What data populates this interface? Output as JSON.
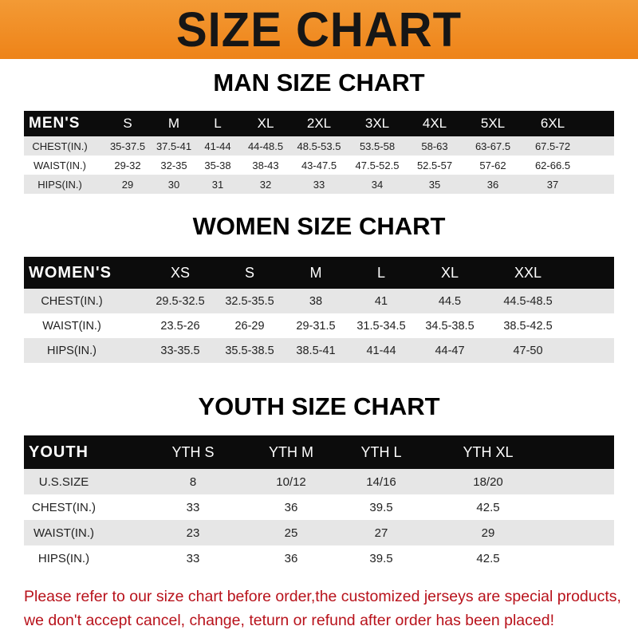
{
  "banner": "SIZE CHART",
  "tables": [
    {
      "title": "MAN SIZE CHART",
      "header": [
        "MEN'S",
        "S",
        "M",
        "L",
        "XL",
        "2XL",
        "3XL",
        "4XL",
        "5XL",
        "6XL"
      ],
      "rows": [
        [
          "CHEST(IN.)",
          "35-37.5",
          "37.5-41",
          "41-44",
          "44-48.5",
          "48.5-53.5",
          "53.5-58",
          "58-63",
          "63-67.5",
          "67.5-72"
        ],
        [
          "WAIST(IN.)",
          "29-32",
          "32-35",
          "35-38",
          "38-43",
          "43-47.5",
          "47.5-52.5",
          "52.5-57",
          "57-62",
          "62-66.5"
        ],
        [
          "HIPS(IN.)",
          "29",
          "30",
          "31",
          "32",
          "33",
          "34",
          "35",
          "36",
          "37"
        ]
      ]
    },
    {
      "title": "WOMEN SIZE CHART",
      "header": [
        "WOMEN'S",
        "XS",
        "S",
        "M",
        "L",
        "XL",
        "XXL"
      ],
      "rows": [
        [
          "CHEST(IN.)",
          "29.5-32.5",
          "32.5-35.5",
          "38",
          "41",
          "44.5",
          "44.5-48.5"
        ],
        [
          "WAIST(IN.)",
          "23.5-26",
          "26-29",
          "29-31.5",
          "31.5-34.5",
          "34.5-38.5",
          "38.5-42.5"
        ],
        [
          "HIPS(IN.)",
          "33-35.5",
          "35.5-38.5",
          "38.5-41",
          "41-44",
          "44-47",
          "47-50"
        ]
      ]
    },
    {
      "title": "YOUTH SIZE CHART",
      "header": [
        "YOUTH",
        "YTH S",
        "YTH M",
        "YTH L",
        "YTH XL"
      ],
      "rows": [
        [
          "U.S.SIZE",
          "8",
          "10/12",
          "14/16",
          "18/20"
        ],
        [
          "CHEST(IN.)",
          "33",
          "36",
          "39.5",
          "42.5"
        ],
        [
          "WAIST(IN.)",
          "23",
          "25",
          "27",
          "29"
        ],
        [
          "HIPS(IN.)",
          "33",
          "36",
          "39.5",
          "42.5"
        ]
      ]
    }
  ],
  "notice": [
    "Please refer to our size chart before order,the customized jerseys are special products,",
    "we don't accept cancel, change, teturn or refund after order has been placed!"
  ],
  "colors": {
    "banner": "#ee8318",
    "header_row": "#0c0c0c",
    "alt_row": "#e6e6e6",
    "notice": "#b8121b"
  }
}
